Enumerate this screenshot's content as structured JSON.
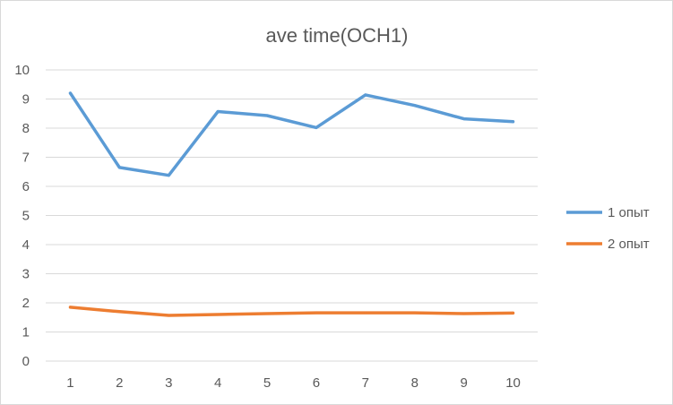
{
  "chart_data": {
    "type": "line",
    "title": "ave time(OCH1)",
    "xlabel": "",
    "ylabel": "",
    "categories": [
      "1",
      "2",
      "3",
      "4",
      "5",
      "6",
      "7",
      "8",
      "9",
      "10"
    ],
    "ylim": [
      0,
      10
    ],
    "yticks": [
      0,
      1,
      2,
      3,
      4,
      5,
      6,
      7,
      8,
      9,
      10
    ],
    "grid": true,
    "legend_position": "right",
    "series": [
      {
        "name": "1 опыт",
        "color": "#5b9bd5",
        "values": [
          9.2,
          6.65,
          6.38,
          8.57,
          8.43,
          8.02,
          9.14,
          8.78,
          8.32,
          8.22
        ]
      },
      {
        "name": "2 опыт",
        "color": "#ed7d31",
        "values": [
          1.85,
          1.7,
          1.57,
          1.6,
          1.63,
          1.66,
          1.66,
          1.66,
          1.63,
          1.65
        ]
      }
    ]
  }
}
